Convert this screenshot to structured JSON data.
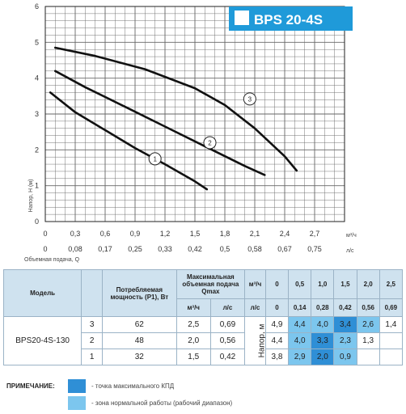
{
  "colors": {
    "badge": "#1f9ad9",
    "curve": "#111111",
    "max_efficiency": "#2f8fd6",
    "normal_range": "#7cc6ee",
    "header_bg": "#cfe2ef",
    "grid": "#555555"
  },
  "chart_data": {
    "type": "line",
    "title": "BPS 20-4S",
    "ylabel": "Напор, Н (м)",
    "xlabel": "Объемная подача, Q",
    "x_unit": "м³/ч",
    "x2_unit": "л/с",
    "xlim": [
      0,
      3.0
    ],
    "ylim": [
      0,
      6
    ],
    "x_ticks": [
      "0",
      "0,3",
      "0,6",
      "0,9",
      "1,2",
      "1,5",
      "1,8",
      "2,1",
      "2,4",
      "2,7"
    ],
    "x2_ticks": [
      "0",
      "0,08",
      "0,17",
      "0,25",
      "0,33",
      "0,42",
      "0,5",
      "0,58",
      "0,67",
      "0,75"
    ],
    "y_ticks": [
      "0",
      "1",
      "2",
      "3",
      "4",
      "5",
      "6"
    ],
    "grid": true,
    "series": [
      {
        "name": "1",
        "x": [
          0.05,
          0.3,
          0.6,
          0.9,
          1.2,
          1.5,
          1.62
        ],
        "y": [
          3.6,
          3.05,
          2.55,
          2.05,
          1.6,
          1.12,
          0.9
        ]
      },
      {
        "name": "2",
        "x": [
          0.1,
          0.4,
          0.8,
          1.2,
          1.6,
          2.0,
          2.2
        ],
        "y": [
          4.2,
          3.75,
          3.2,
          2.65,
          2.1,
          1.55,
          1.3
        ]
      },
      {
        "name": "3",
        "x": [
          0.1,
          0.5,
          1.0,
          1.5,
          1.8,
          2.1,
          2.4,
          2.52
        ],
        "y": [
          4.85,
          4.62,
          4.25,
          3.72,
          3.25,
          2.6,
          1.82,
          1.42
        ]
      }
    ]
  },
  "table": {
    "headers": {
      "model": "Модель",
      "power": "Потребляемая мощность (Р1), Вт",
      "max_flow": "Максимальная объемная подача Qmax",
      "flow": "Объемная подача",
      "unit_m3": "м³/ч",
      "unit_ls": "л/с",
      "head": "Напор, м"
    },
    "flow_m3": [
      "0",
      "0,5",
      "1,0",
      "1,5",
      "2,0",
      "2,5"
    ],
    "flow_ls": [
      "0",
      "0,14",
      "0,28",
      "0,42",
      "0,56",
      "0,69"
    ],
    "model_name": "BPS20-4S-130",
    "rows": [
      {
        "speed": "3",
        "power": "62",
        "qmax_m3": "2,5",
        "qmax_ls": "0,69",
        "heads": [
          "4,9",
          "4,4",
          "4,0",
          "3,4",
          "2,6",
          "1,4"
        ]
      },
      {
        "speed": "2",
        "power": "48",
        "qmax_m3": "2,0",
        "qmax_ls": "0,56",
        "heads": [
          "4,4",
          "4,0",
          "3,3",
          "2,3",
          "1,3",
          ""
        ]
      },
      {
        "speed": "1",
        "power": "32",
        "qmax_m3": "1,5",
        "qmax_ls": "0,42",
        "heads": [
          "3,8",
          "2,9",
          "2,0",
          "0,9",
          "",
          ""
        ]
      }
    ]
  },
  "notes": {
    "title": "ПРИМЕЧАНИЕ:",
    "max_efficiency": "- точка максимального КПД",
    "normal_range": "- зона нормальной работы (рабочий диапазон)"
  }
}
